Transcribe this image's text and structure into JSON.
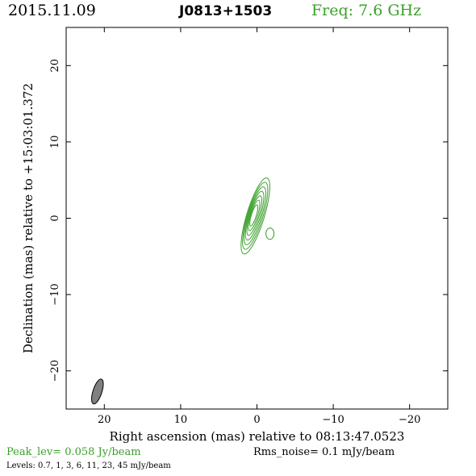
{
  "header": {
    "date": "2015.11.09",
    "source": "J0813+1503",
    "freq": "Freq: 7.6 GHz"
  },
  "footer": {
    "peak": "Peak_lev=  0.058 Jy/beam",
    "rms": "Rms_noise=   0.1 mJy/beam",
    "levels": "Levels: 0.7,    1,    3,    6,   11,   23,   45 mJy/beam"
  },
  "colors": {
    "contour": "#3aa02a",
    "beam_fill": "#808080",
    "axis": "#000000"
  },
  "chart_data": {
    "type": "contour",
    "xlabel": "Right ascension (mas) relative to 08:13:47.0523",
    "ylabel": "Declination (mas) relative to +15:03:01.372",
    "xlim": [
      25,
      -25
    ],
    "ylim": [
      -25,
      25
    ],
    "xticks": [
      20,
      10,
      0,
      -10,
      -20
    ],
    "xtick_labels": [
      "20",
      "10",
      "0",
      "−10",
      "−20"
    ],
    "yticks": [
      20,
      10,
      0,
      -10,
      -20
    ],
    "ytick_labels": [
      "20",
      "10",
      "0",
      "−10",
      "−20"
    ],
    "contour_levels_mJy": [
      0.7,
      1,
      3,
      6,
      11,
      23,
      45
    ],
    "source_component": {
      "x": 0.2,
      "y": 0.3,
      "major_axis_outer": 10.4,
      "minor_axis_outer": 2.3,
      "position_angle_deg": 17
    },
    "beam": {
      "x": 20.9,
      "y": -22.7,
      "major_axis": 3.4,
      "minor_axis": 0.9,
      "position_angle_deg": 18
    }
  }
}
